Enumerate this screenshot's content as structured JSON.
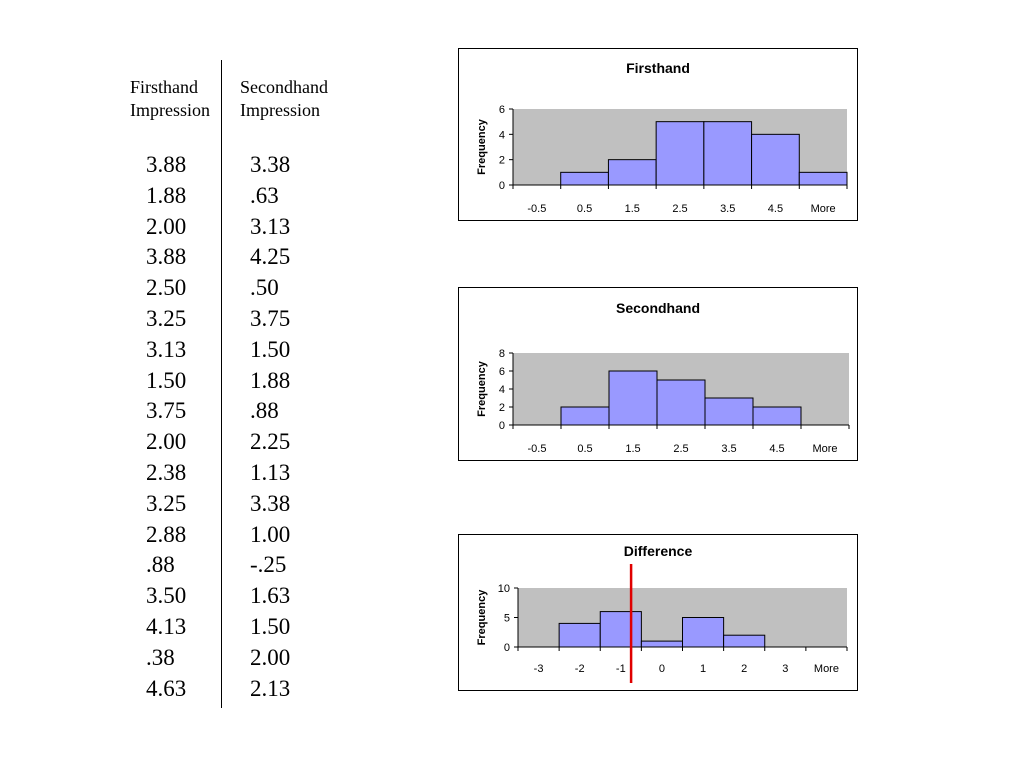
{
  "table": {
    "headers": {
      "firsthand": [
        "Firsthand",
        "Impression"
      ],
      "secondhand": [
        "Secondhand",
        "Impression"
      ]
    },
    "firsthand": [
      "3.88",
      "1.88",
      "2.00",
      "3.88",
      "2.50",
      "3.25",
      "3.13",
      "1.50",
      "3.75",
      "2.00",
      "2.38",
      "3.25",
      "2.88",
      ".88",
      "3.50",
      "4.13",
      ".38",
      "4.63"
    ],
    "secondhand": [
      "3.38",
      ".63",
      "3.13",
      "4.25",
      ".50",
      "3.75",
      "1.50",
      "1.88",
      ".88",
      "2.25",
      "1.13",
      "3.38",
      "1.00",
      "-.25",
      "1.63",
      "1.50",
      "2.00",
      "2.13"
    ]
  },
  "colors": {
    "bar": "#9999ff",
    "plot_bg": "#c0c0c0",
    "marker": "#e00000"
  },
  "chart_data": [
    {
      "type": "bar",
      "title": "Firsthand",
      "ylabel": "Frequency",
      "xlabel": "",
      "categories": [
        "-0.5",
        "0.5",
        "1.5",
        "2.5",
        "3.5",
        "4.5",
        "More"
      ],
      "values": [
        0,
        1,
        2,
        5,
        5,
        4,
        1
      ],
      "ylim": [
        0,
        6
      ],
      "yticks": [
        0,
        2,
        4,
        6
      ],
      "grid": false
    },
    {
      "type": "bar",
      "title": "Secondhand",
      "ylabel": "Frequency",
      "xlabel": "",
      "categories": [
        "-0.5",
        "0.5",
        "1.5",
        "2.5",
        "3.5",
        "4.5",
        "More"
      ],
      "values": [
        0,
        2,
        6,
        5,
        3,
        2,
        0
      ],
      "ylim": [
        0,
        8
      ],
      "yticks": [
        0,
        2,
        4,
        6,
        8
      ],
      "grid": false
    },
    {
      "type": "bar",
      "title": "Difference",
      "ylabel": "Frequency",
      "xlabel": "",
      "categories": [
        "-3",
        "-2",
        "-1",
        "0",
        "1",
        "2",
        "3",
        "More"
      ],
      "values": [
        0,
        4,
        6,
        1,
        5,
        2,
        0,
        0
      ],
      "ylim": [
        0,
        10
      ],
      "yticks": [
        0,
        5,
        10
      ],
      "grid": false,
      "reference_line_x": -0.75
    }
  ]
}
